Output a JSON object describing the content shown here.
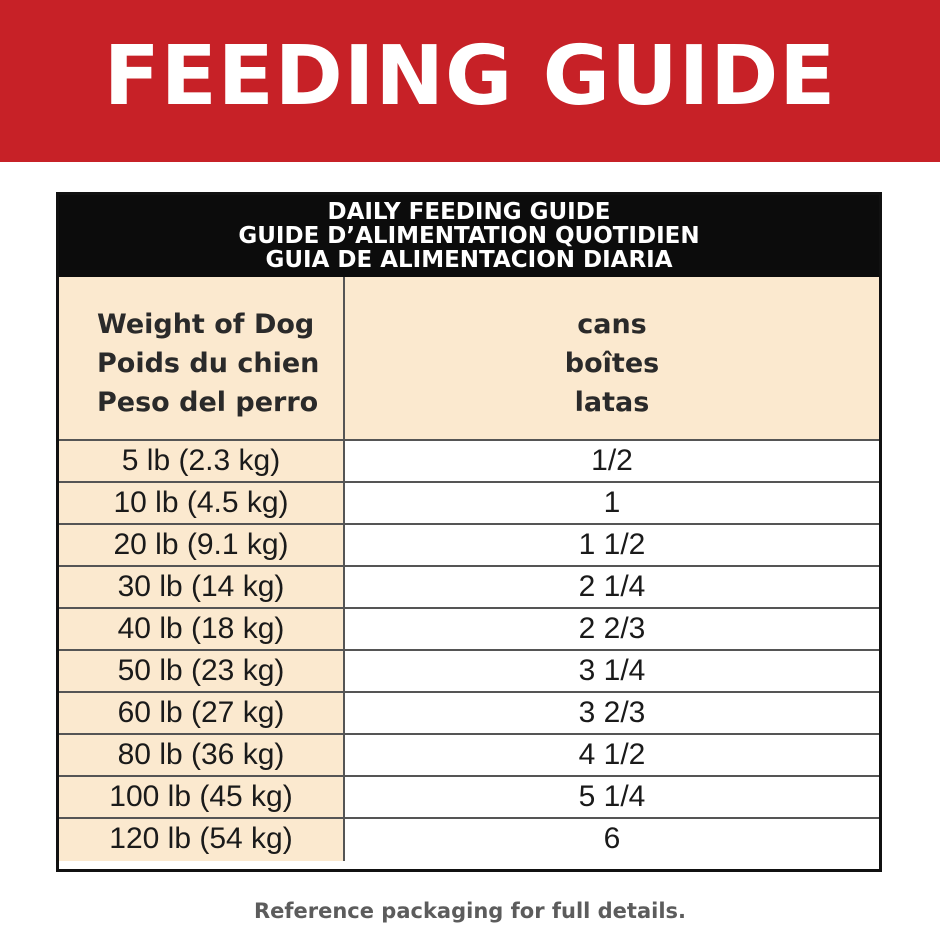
{
  "banner": {
    "title": "FEEDING GUIDE",
    "background_color": "#c72127"
  },
  "guide": {
    "header_lines": [
      "DAILY FEEDING GUIDE",
      "GUIDE D’ALIMENTATION QUOTIDIEN",
      "GUIA DE ALIMENTACION DIARIA"
    ],
    "columns": {
      "weight": [
        "Weight of Dog",
        "Poids du chien",
        "Peso del perro"
      ],
      "cans": [
        "cans",
        "boîtes",
        "latas"
      ]
    },
    "rows": [
      {
        "weight": "5 lb (2.3 kg)",
        "cans": "1/2"
      },
      {
        "weight": "10 lb (4.5 kg)",
        "cans": "1"
      },
      {
        "weight": "20 lb (9.1 kg)",
        "cans": "1 1/2"
      },
      {
        "weight": "30 lb (14 kg)",
        "cans": "2 1/4"
      },
      {
        "weight": "40 lb (18 kg)",
        "cans": "2 2/3"
      },
      {
        "weight": "50 lb (23 kg)",
        "cans": "3 1/4"
      },
      {
        "weight": "60 lb (27 kg)",
        "cans": "3 2/3"
      },
      {
        "weight": "80 lb (36 kg)",
        "cans": "4 1/2"
      },
      {
        "weight": "100 lb (45 kg)",
        "cans": "5 1/4"
      },
      {
        "weight": "120 lb (54 kg)",
        "cans": "6"
      }
    ],
    "colors": {
      "header_background": "#0c0c0c",
      "weight_column_background": "#fbe9cf"
    }
  },
  "footer": {
    "note": "Reference packaging for full details."
  }
}
